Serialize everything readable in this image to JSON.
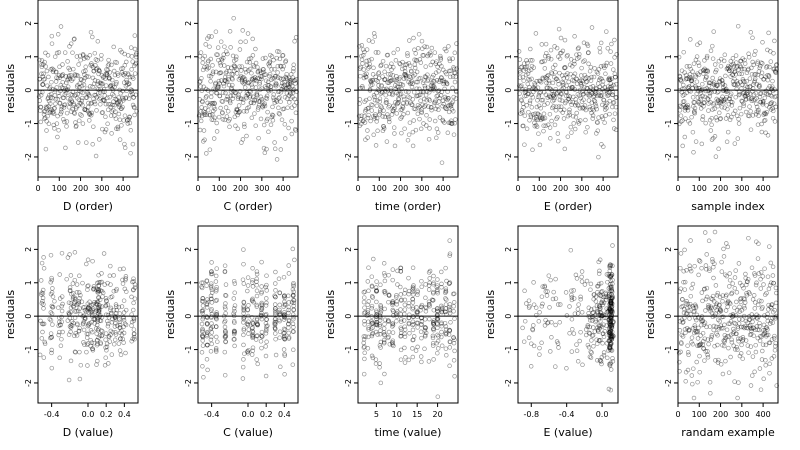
{
  "chart_data": [
    {
      "type": "scatter",
      "xlabel": "D (order)",
      "ylabel": "residuals",
      "x_range": [
        0,
        470
      ],
      "xticks": [
        0,
        100,
        200,
        300,
        400
      ],
      "xtick_labels": [
        "0",
        "100",
        "200",
        "300",
        "400"
      ],
      "ylim": [
        -2.6,
        2.7
      ],
      "yticks": [
        -2,
        -1,
        0,
        1,
        2
      ],
      "ytick_labels": [
        "-2",
        "-1",
        "0",
        "1",
        "2"
      ],
      "reference_line_y": 0,
      "n_points": 460,
      "pattern": "order",
      "seed": 11
    },
    {
      "type": "scatter",
      "xlabel": "C (order)",
      "ylabel": "residuals",
      "x_range": [
        0,
        470
      ],
      "xticks": [
        0,
        100,
        200,
        300,
        400
      ],
      "xtick_labels": [
        "0",
        "100",
        "200",
        "300",
        "400"
      ],
      "ylim": [
        -2.6,
        2.7
      ],
      "yticks": [
        -2,
        -1,
        0,
        1,
        2
      ],
      "ytick_labels": [
        "-2",
        "-1",
        "0",
        "1",
        "2"
      ],
      "reference_line_y": 0,
      "n_points": 460,
      "pattern": "order",
      "seed": 23
    },
    {
      "type": "scatter",
      "xlabel": "time (order)",
      "ylabel": "residuals",
      "x_range": [
        0,
        470
      ],
      "xticks": [
        0,
        100,
        200,
        300,
        400
      ],
      "xtick_labels": [
        "0",
        "100",
        "200",
        "300",
        "400"
      ],
      "ylim": [
        -2.6,
        2.7
      ],
      "yticks": [
        -2,
        -1,
        0,
        1,
        2
      ],
      "ytick_labels": [
        "-2",
        "-1",
        "0",
        "1",
        "2"
      ],
      "reference_line_y": 0,
      "n_points": 460,
      "pattern": "order",
      "seed": 37
    },
    {
      "type": "scatter",
      "xlabel": "E (order)",
      "ylabel": "residuals",
      "x_range": [
        0,
        470
      ],
      "xticks": [
        0,
        100,
        200,
        300,
        400
      ],
      "xtick_labels": [
        "0",
        "100",
        "200",
        "300",
        "400"
      ],
      "ylim": [
        -2.6,
        2.7
      ],
      "yticks": [
        -2,
        -1,
        0,
        1,
        2
      ],
      "ytick_labels": [
        "-2",
        "-1",
        "0",
        "1",
        "2"
      ],
      "reference_line_y": 0,
      "n_points": 460,
      "pattern": "order",
      "seed": 41
    },
    {
      "type": "scatter",
      "xlabel": "sample index",
      "ylabel": "residuals",
      "x_range": [
        0,
        470
      ],
      "xticks": [
        0,
        100,
        200,
        300,
        400
      ],
      "xtick_labels": [
        "0",
        "100",
        "200",
        "300",
        "400"
      ],
      "ylim": [
        -2.6,
        2.7
      ],
      "yticks": [
        -2,
        -1,
        0,
        1,
        2
      ],
      "ytick_labels": [
        "-2",
        "-1",
        "0",
        "1",
        "2"
      ],
      "reference_line_y": 0,
      "n_points": 460,
      "pattern": "order",
      "seed": 53
    },
    {
      "type": "scatter",
      "xlabel": "D (value)",
      "ylabel": "residuals",
      "x_range": [
        -0.55,
        0.55
      ],
      "xticks": [
        -0.4,
        0,
        0.2,
        0.4
      ],
      "xtick_labels": [
        "-0.4",
        "0.0",
        "0.2",
        "0.4"
      ],
      "ylim": [
        -2.6,
        2.7
      ],
      "yticks": [
        -2,
        -1,
        0,
        1,
        2
      ],
      "ytick_labels": [
        "-2",
        "-1",
        "0",
        "1",
        "2"
      ],
      "reference_line_y": 0,
      "n_points": 400,
      "pattern": "dense-columns",
      "columns": [
        -0.5,
        -0.4,
        -0.3,
        -0.2,
        -0.15,
        -0.1,
        -0.05,
        0,
        0.05,
        0.1,
        0.12,
        0.15,
        0.2,
        0.25,
        0.3,
        0.35,
        0.4,
        0.5
      ],
      "seed": 61
    },
    {
      "type": "scatter",
      "xlabel": "C (value)",
      "ylabel": "residuals",
      "x_range": [
        -0.55,
        0.55
      ],
      "xticks": [
        -0.4,
        0,
        0.2,
        0.4
      ],
      "xtick_labels": [
        "-0.4",
        "0.0",
        "0.2",
        "0.4"
      ],
      "ylim": [
        -2.6,
        2.7
      ],
      "yticks": [
        -2,
        -1,
        0,
        1,
        2
      ],
      "ytick_labels": [
        "-2",
        "-1",
        "0",
        "1",
        "2"
      ],
      "reference_line_y": 0,
      "n_points": 380,
      "pattern": "columns",
      "columns": [
        -0.5,
        -0.45,
        -0.4,
        -0.35,
        -0.25,
        -0.15,
        -0.05,
        0,
        0.05,
        0.1,
        0.15,
        0.2,
        0.3,
        0.35,
        0.4,
        0.45,
        0.5
      ],
      "seed": 71
    },
    {
      "type": "scatter",
      "xlabel": "time (value)",
      "ylabel": "residuals",
      "x_range": [
        0.5,
        25
      ],
      "xticks": [
        5,
        10,
        15,
        20
      ],
      "xtick_labels": [
        "5",
        "10",
        "15",
        "20"
      ],
      "ylim": [
        -2.6,
        2.7
      ],
      "yticks": [
        -2,
        -1,
        0,
        1,
        2
      ],
      "ytick_labels": [
        "-2",
        "-1",
        "0",
        "1",
        "2"
      ],
      "reference_line_y": 0,
      "n_points": 400,
      "pattern": "columns",
      "columns": [
        2,
        3,
        4,
        5,
        6,
        7,
        8,
        9,
        10,
        11,
        12,
        13,
        14,
        15,
        16,
        17,
        18,
        19,
        20,
        21,
        22,
        23,
        24
      ],
      "seed": 83
    },
    {
      "type": "scatter",
      "xlabel": "E (value)",
      "ylabel": "residuals",
      "x_range": [
        -0.95,
        0.18
      ],
      "xticks": [
        -0.8,
        -0.4,
        0
      ],
      "xtick_labels": [
        "-0.8",
        "-0.4",
        "0.0"
      ],
      "ylim": [
        -2.6,
        2.7
      ],
      "yticks": [
        -2,
        -1,
        0,
        1,
        2
      ],
      "ytick_labels": [
        "-2",
        "-1",
        "0",
        "1",
        "2"
      ],
      "reference_line_y": 0,
      "n_points": 400,
      "pattern": "right-skew",
      "seed": 97
    },
    {
      "type": "scatter",
      "xlabel": "randam example",
      "ylabel": "residuals",
      "x_range": [
        0,
        470
      ],
      "xticks": [
        0,
        100,
        200,
        300,
        400
      ],
      "xtick_labels": [
        "0",
        "100",
        "200",
        "300",
        "400"
      ],
      "ylim": [
        -2.6,
        2.7
      ],
      "yticks": [
        -2,
        -1,
        0,
        1,
        2
      ],
      "ytick_labels": [
        "-2",
        "-1",
        "0",
        "1",
        "2"
      ],
      "reference_line_y": 0,
      "n_points": 460,
      "pattern": "wide",
      "seed": 103
    }
  ]
}
